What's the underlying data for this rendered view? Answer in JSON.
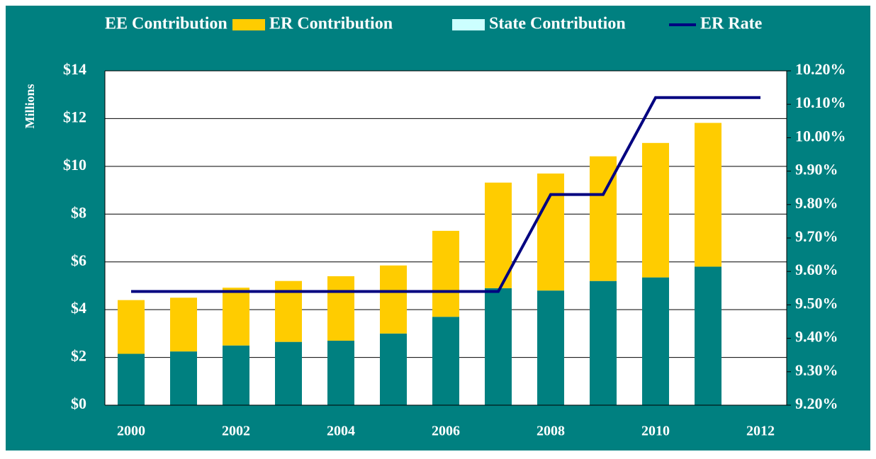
{
  "chart_data": {
    "type": "bar",
    "y_label": "Millions",
    "categories": [
      "2000",
      null,
      "2002",
      null,
      "2004",
      null,
      "2006",
      null,
      "2008",
      null,
      "2010",
      null,
      "2012"
    ],
    "series": [
      {
        "name": "EE Contribution",
        "type": "bar",
        "color": "#008080",
        "values": [
          2.15,
          2.25,
          2.5,
          2.65,
          2.7,
          3.0,
          3.7,
          4.9,
          4.8,
          5.2,
          5.35,
          5.8,
          null
        ]
      },
      {
        "name": "ER Contribution",
        "type": "bar",
        "color": "#ffcc00",
        "values": [
          2.25,
          2.25,
          2.42,
          2.55,
          2.7,
          2.85,
          3.6,
          4.42,
          4.9,
          5.22,
          5.63,
          6.02,
          null
        ]
      },
      {
        "name": "State Contribution",
        "type": "bar",
        "color": "#ccffff",
        "values": [
          null,
          null,
          null,
          null,
          null,
          null,
          null,
          null,
          null,
          null,
          null,
          null,
          null
        ]
      },
      {
        "name": "ER Rate",
        "type": "line",
        "axis": "y2",
        "color": "#000080",
        "values": [
          9.54,
          9.54,
          9.54,
          9.54,
          9.54,
          9.54,
          9.54,
          9.54,
          9.83,
          9.83,
          10.12,
          10.12,
          10.12
        ]
      }
    ],
    "ylim": [
      0,
      14
    ],
    "yticks": [
      {
        "value": 0,
        "label": "$0"
      },
      {
        "value": 2,
        "label": "$2"
      },
      {
        "value": 4,
        "label": "$4"
      },
      {
        "value": 6,
        "label": "$6"
      },
      {
        "value": 8,
        "label": "$8"
      },
      {
        "value": 10,
        "label": "$10"
      },
      {
        "value": 12,
        "label": "$12"
      },
      {
        "value": 14,
        "label": "$14"
      }
    ],
    "y2lim": [
      9.2,
      10.2
    ],
    "y2ticks": [
      {
        "value": 9.2,
        "label": "9.20%"
      },
      {
        "value": 9.3,
        "label": "9.30%"
      },
      {
        "value": 9.4,
        "label": "9.40%"
      },
      {
        "value": 9.5,
        "label": "9.50%"
      },
      {
        "value": 9.6,
        "label": "9.60%"
      },
      {
        "value": 9.7,
        "label": "9.70%"
      },
      {
        "value": 9.8,
        "label": "9.80%"
      },
      {
        "value": 9.9,
        "label": "9.90%"
      },
      {
        "value": 10.0,
        "label": "10.00%"
      },
      {
        "value": 10.1,
        "label": "10.10%"
      },
      {
        "value": 10.2,
        "label": "10.20%"
      }
    ],
    "grid": true,
    "legend": "top"
  }
}
